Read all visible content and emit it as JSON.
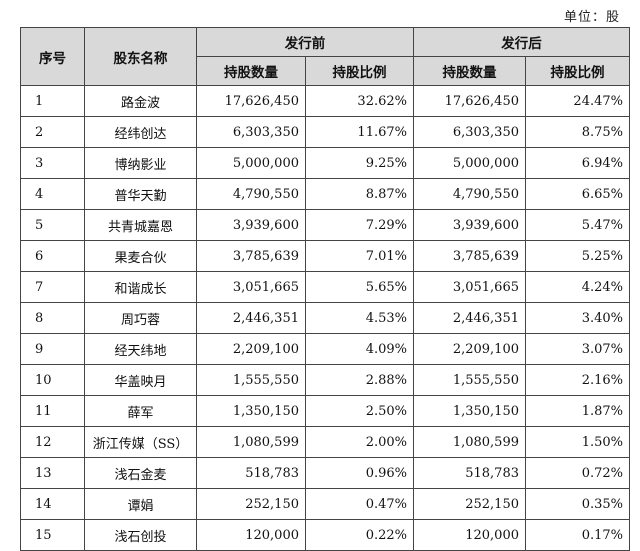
{
  "unit_label": "单位：股",
  "headers": {
    "index": "序号",
    "name": "股东名称",
    "before_group": "发行前",
    "after_group": "发行后",
    "shares": "持股数量",
    "ratio": "持股比例"
  },
  "rows": [
    {
      "idx": "1",
      "name": "路金波",
      "before_shares": "17,626,450",
      "before_ratio": "32.62%",
      "after_shares": "17,626,450",
      "after_ratio": "24.47%"
    },
    {
      "idx": "2",
      "name": "经纬创达",
      "before_shares": "6,303,350",
      "before_ratio": "11.67%",
      "after_shares": "6,303,350",
      "after_ratio": "8.75%"
    },
    {
      "idx": "3",
      "name": "博纳影业",
      "before_shares": "5,000,000",
      "before_ratio": "9.25%",
      "after_shares": "5,000,000",
      "after_ratio": "6.94%"
    },
    {
      "idx": "4",
      "name": "普华天勤",
      "before_shares": "4,790,550",
      "before_ratio": "8.87%",
      "after_shares": "4,790,550",
      "after_ratio": "6.65%"
    },
    {
      "idx": "5",
      "name": "共青城嘉恩",
      "before_shares": "3,939,600",
      "before_ratio": "7.29%",
      "after_shares": "3,939,600",
      "after_ratio": "5.47%"
    },
    {
      "idx": "6",
      "name": "果麦合伙",
      "before_shares": "3,785,639",
      "before_ratio": "7.01%",
      "after_shares": "3,785,639",
      "after_ratio": "5.25%"
    },
    {
      "idx": "7",
      "name": "和谐成长",
      "before_shares": "3,051,665",
      "before_ratio": "5.65%",
      "after_shares": "3,051,665",
      "after_ratio": "4.24%"
    },
    {
      "idx": "8",
      "name": "周巧蓉",
      "before_shares": "2,446,351",
      "before_ratio": "4.53%",
      "after_shares": "2,446,351",
      "after_ratio": "3.40%"
    },
    {
      "idx": "9",
      "name": "经天纬地",
      "before_shares": "2,209,100",
      "before_ratio": "4.09%",
      "after_shares": "2,209,100",
      "after_ratio": "3.07%"
    },
    {
      "idx": "10",
      "name": "华盖映月",
      "before_shares": "1,555,550",
      "before_ratio": "2.88%",
      "after_shares": "1,555,550",
      "after_ratio": "2.16%"
    },
    {
      "idx": "11",
      "name": "薛军",
      "before_shares": "1,350,150",
      "before_ratio": "2.50%",
      "after_shares": "1,350,150",
      "after_ratio": "1.87%"
    },
    {
      "idx": "12",
      "name": "浙江传媒（SS）",
      "before_shares": "1,080,599",
      "before_ratio": "2.00%",
      "after_shares": "1,080,599",
      "after_ratio": "1.50%"
    },
    {
      "idx": "13",
      "name": "浅石金麦",
      "before_shares": "518,783",
      "before_ratio": "0.96%",
      "after_shares": "518,783",
      "after_ratio": "0.72%"
    },
    {
      "idx": "14",
      "name": "谭娟",
      "before_shares": "252,150",
      "before_ratio": "0.47%",
      "after_shares": "252,150",
      "after_ratio": "0.35%"
    },
    {
      "idx": "15",
      "name": "浅石创投",
      "before_shares": "120,000",
      "before_ratio": "0.22%",
      "after_shares": "120,000",
      "after_ratio": "0.17%"
    }
  ]
}
